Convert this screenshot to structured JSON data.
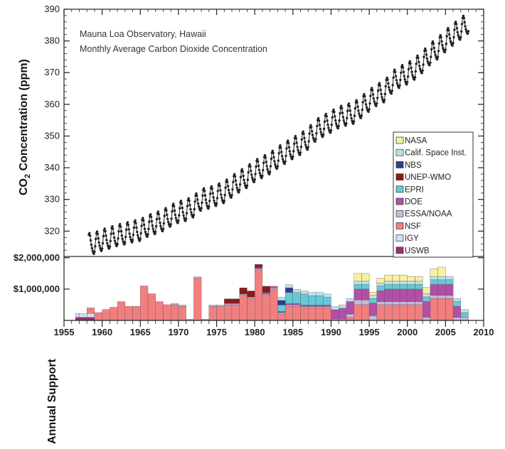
{
  "chart_data": [
    {
      "type": "line",
      "title": "Mauna Loa Observatory, Hawaii",
      "subtitle": "Monthly Average Carbon Dioxide Concentration",
      "ylabel_main": "CO",
      "ylabel_sub": "2",
      "ylabel_rest": " Concentration (ppm)",
      "ylim": [
        312,
        390
      ],
      "xlim": [
        1955,
        2010
      ],
      "yticks": [
        "320",
        "330",
        "340",
        "350",
        "360",
        "370",
        "380",
        "390"
      ],
      "series": [
        {
          "x": [
            1958.25,
            1959,
            1960,
            1961,
            1962,
            1963,
            1964,
            1965,
            1966,
            1967,
            1968,
            1969,
            1970,
            1971,
            1972,
            1973,
            1974,
            1975,
            1976,
            1977,
            1978,
            1979,
            1980,
            1981,
            1982,
            1983,
            1984,
            1985,
            1986,
            1987,
            1988,
            1989,
            1990,
            1991,
            1992,
            1993,
            1994,
            1995,
            1996,
            1997,
            1998,
            1999,
            2000,
            2001,
            2002,
            2003,
            2004,
            2005,
            2006,
            2007,
            2008
          ],
          "y": [
            315.7,
            315.9,
            316.9,
            317.6,
            318.4,
            318.9,
            319.6,
            320.0,
            321.4,
            322.2,
            323.1,
            324.6,
            325.7,
            326.3,
            327.5,
            329.7,
            330.2,
            331.1,
            332.0,
            333.8,
            335.4,
            336.8,
            338.7,
            339.9,
            341.1,
            342.9,
            344.4,
            345.9,
            347.2,
            348.9,
            351.5,
            352.9,
            354.2,
            355.6,
            356.4,
            357.0,
            358.9,
            360.9,
            362.7,
            363.8,
            366.7,
            368.4,
            369.4,
            371.0,
            373.1,
            375.6,
            377.4,
            379.7,
            381.8,
            383.6,
            385.5
          ]
        }
      ],
      "seasonal_amplitude": 3.2
    },
    {
      "type": "area",
      "ylabel": "Annual Support",
      "ytick_labels": [
        "$1,000,000",
        "$2,000,000"
      ],
      "yticks": [
        1000000,
        2000000
      ],
      "ylim": [
        0,
        2000000
      ],
      "x_tick_labels": [
        "1955",
        "1960",
        "1965",
        "1970",
        "1975",
        "1980",
        "1985",
        "1990",
        "1995",
        "2000",
        "2005",
        "2010"
      ],
      "legend": [
        "NASA",
        "Calif. Space Inst.",
        "NBS",
        "UNEP-WMO",
        "EPRI",
        "DOE",
        "ESSA/NOAA",
        "NSF",
        "IGY",
        "USWB"
      ],
      "legend_position": "right, inside upper plot",
      "colors": {
        "NASA": "#f7f0a0",
        "Calif. Space Inst.": "#bfe1ee",
        "NBS": "#2f3f8f",
        "UNEP-WMO": "#8c1a1a",
        "EPRI": "#66c9d6",
        "DOE": "#b24fa6",
        "ESSA/NOAA": "#c6b9dd",
        "NSF": "#f27f7f",
        "IGY": "#d1e1f0",
        "USWB": "#9c2d73"
      },
      "series": [
        {
          "name": "USWB",
          "x": [
            1956.5,
            1957,
            1958,
            1959
          ],
          "values": [
            100000,
            100000,
            100000,
            0
          ]
        },
        {
          "name": "IGY",
          "x": [
            1956.5,
            1957,
            1958,
            1959
          ],
          "values": [
            120000,
            120000,
            120000,
            0
          ]
        },
        {
          "name": "NSF",
          "x": [
            1958,
            1959,
            1960,
            1961,
            1962,
            1963,
            1964,
            1965,
            1966,
            1967,
            1968,
            1969,
            1970,
            1971,
            1972,
            1973,
            1974,
            1975,
            1976,
            1977,
            1978,
            1979,
            1980,
            1981,
            1982,
            1983,
            1984,
            1985,
            1986,
            1987,
            1988,
            1989,
            1990,
            1991,
            1992,
            1993,
            1994,
            1995,
            1996,
            1997,
            1998,
            1999,
            2000,
            2001,
            2002,
            2003,
            2004,
            2005,
            2006
          ],
          "values": [
            180000,
            250000,
            350000,
            420000,
            600000,
            450000,
            450000,
            1100000,
            850000,
            600000,
            500000,
            500000,
            450000,
            0,
            1350000,
            0,
            450000,
            450000,
            500000,
            500000,
            800000,
            700000,
            1600000,
            800000,
            1000000,
            200000,
            450000,
            450000,
            400000,
            400000,
            400000,
            400000,
            0,
            0,
            100000,
            500000,
            500000,
            0,
            500000,
            500000,
            500000,
            500000,
            500000,
            500000,
            0,
            700000,
            700000,
            700000,
            0
          ]
        },
        {
          "name": "ESSA/NOAA",
          "x": [
            1969,
            1970,
            1992,
            1993,
            1994,
            1996,
            1998,
            1999,
            2001,
            2003
          ],
          "values": [
            40000,
            40000,
            100000,
            150000,
            150000,
            100000,
            100000,
            100000,
            100000,
            100000
          ]
        },
        {
          "name": "DOE",
          "x": [
            1980,
            1981,
            1982,
            1990,
            1991,
            1992,
            1993,
            1994,
            1995,
            1996,
            1997,
            1998,
            1999,
            2000,
            2001,
            2002,
            2003,
            2004,
            2005,
            2006,
            2007
          ],
          "values": [
            50000,
            50000,
            50000,
            300000,
            350000,
            400000,
            350000,
            350000,
            400000,
            350000,
            400000,
            400000,
            400000,
            400000,
            400000,
            500000,
            350000,
            350000,
            350000,
            350000,
            0
          ]
        },
        {
          "name": "EPRI",
          "x": [
            1983,
            1984,
            1985,
            1986,
            1987,
            1988,
            1989,
            1990,
            1993,
            1994
          ],
          "values": [
            200000,
            350000,
            350000,
            350000,
            300000,
            300000,
            250000,
            0,
            150000,
            150000
          ]
        },
        {
          "name": "UNEP-WMO",
          "x": [
            1976,
            1977,
            1978,
            1979,
            1980,
            1981,
            1982
          ],
          "values": [
            150000,
            150000,
            200000,
            200000,
            100000,
            200000,
            0
          ]
        },
        {
          "name": "NBS",
          "x": [
            1983,
            1984,
            1985
          ],
          "values": [
            150000,
            150000,
            0
          ]
        },
        {
          "name": "Calif. Space Inst.",
          "x": [
            1983,
            1984
          ],
          "values": [
            100000,
            100000
          ]
        },
        {
          "name": "NASA",
          "x": [
            1993,
            1994,
            1995,
            1996,
            1997,
            1998,
            1999,
            2000,
            2001,
            2002,
            2003,
            2004,
            2005
          ],
          "values": [
            250000,
            250000,
            100000,
            150000,
            200000,
            200000,
            200000,
            150000,
            150000,
            200000,
            250000,
            300000,
            0
          ]
        }
      ]
    }
  ]
}
